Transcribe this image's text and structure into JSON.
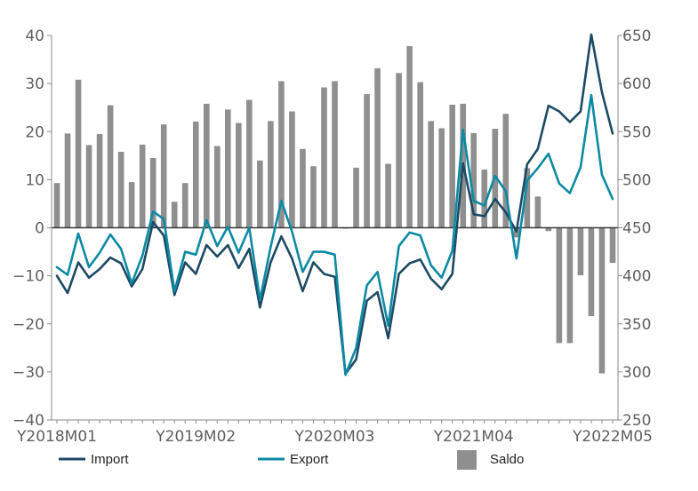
{
  "chart_data": {
    "type": "bar+line",
    "title": "",
    "x": [
      "Y2018M01",
      "Y2018M02",
      "Y2018M03",
      "Y2018M04",
      "Y2018M05",
      "Y2018M06",
      "Y2018M07",
      "Y2018M08",
      "Y2018M09",
      "Y2018M10",
      "Y2018M11",
      "Y2018M12",
      "Y2019M01",
      "Y2019M02",
      "Y2019M03",
      "Y2019M04",
      "Y2019M05",
      "Y2019M06",
      "Y2019M07",
      "Y2019M08",
      "Y2019M09",
      "Y2019M10",
      "Y2019M11",
      "Y2019M12",
      "Y2020M01",
      "Y2020M02",
      "Y2020M03",
      "Y2020M04",
      "Y2020M05",
      "Y2020M06",
      "Y2020M07",
      "Y2020M08",
      "Y2020M09",
      "Y2020M10",
      "Y2020M11",
      "Y2020M12",
      "Y2021M01",
      "Y2021M02",
      "Y2021M03",
      "Y2021M04",
      "Y2021M05",
      "Y2021M06",
      "Y2021M07",
      "Y2021M08",
      "Y2021M09",
      "Y2021M10",
      "Y2021M11",
      "Y2021M12",
      "Y2022M01",
      "Y2022M02",
      "Y2022M03",
      "Y2022M04",
      "Y2022M05"
    ],
    "x_tick_labels": [
      "Y2018M01",
      "Y2019M02",
      "Y2020M03",
      "Y2021M04",
      "Y2022M05"
    ],
    "left_axis": {
      "ylim": [
        -40,
        40
      ],
      "ticks": [
        -40,
        -30,
        -20,
        -10,
        0,
        10,
        20,
        30,
        40
      ]
    },
    "right_axis": {
      "ylim": [
        250,
        650
      ],
      "ticks": [
        250,
        300,
        350,
        400,
        450,
        500,
        550,
        600,
        650
      ]
    },
    "series": [
      {
        "name": "Saldo",
        "kind": "bar",
        "axis": "left",
        "color": "#8f8f8f",
        "values": [
          9.3,
          19.6,
          30.8,
          17.2,
          19.5,
          25.5,
          15.8,
          9.5,
          17.3,
          14.5,
          21.5,
          5.4,
          9.3,
          22.1,
          25.8,
          17,
          24.6,
          21.8,
          26.6,
          14,
          22.2,
          30.5,
          24.2,
          16.4,
          12.8,
          29.2,
          30.5,
          -0.2,
          12.5,
          27.8,
          33.2,
          13.3,
          32.2,
          37.8,
          30.3,
          22.2,
          20.7,
          25.6,
          25.8,
          19.7,
          12.1,
          20.6,
          23.7,
          -2,
          12.4,
          6.5,
          -0.7,
          -24,
          -24,
          -9.9,
          -18.4,
          -30.3,
          -7.3
        ]
      },
      {
        "name": "Import",
        "kind": "line",
        "axis": "right",
        "color": "#1d4a64",
        "values": [
          400,
          382,
          414,
          398,
          407,
          419,
          413,
          389,
          407,
          456,
          442,
          380,
          414,
          402,
          432,
          420,
          432,
          408,
          428,
          367,
          414,
          441,
          418,
          384,
          414,
          402,
          399,
          298,
          313,
          374,
          383,
          335,
          402,
          413,
          417,
          397,
          386,
          402,
          517,
          464,
          462,
          480,
          466,
          446,
          516,
          532,
          577,
          571,
          560,
          571,
          651,
          591,
          548
        ]
      },
      {
        "name": "Export",
        "kind": "line",
        "axis": "right",
        "color": "#0c8aa3",
        "values": [
          409,
          401,
          444,
          409,
          424,
          443,
          428,
          392,
          421,
          467,
          459,
          384,
          425,
          422,
          458,
          431,
          451,
          424,
          450,
          375,
          430,
          478,
          446,
          404,
          425,
          425,
          422,
          297,
          325,
          390,
          404,
          348,
          431,
          445,
          442,
          411,
          398,
          426,
          552,
          478,
          473,
          504,
          488,
          418,
          499,
          512,
          527,
          496,
          486,
          513,
          588,
          505,
          480
        ]
      }
    ],
    "legend": {
      "placement": "bottom",
      "entries": [
        "Import",
        "Export",
        "Saldo"
      ]
    },
    "grid": false
  }
}
